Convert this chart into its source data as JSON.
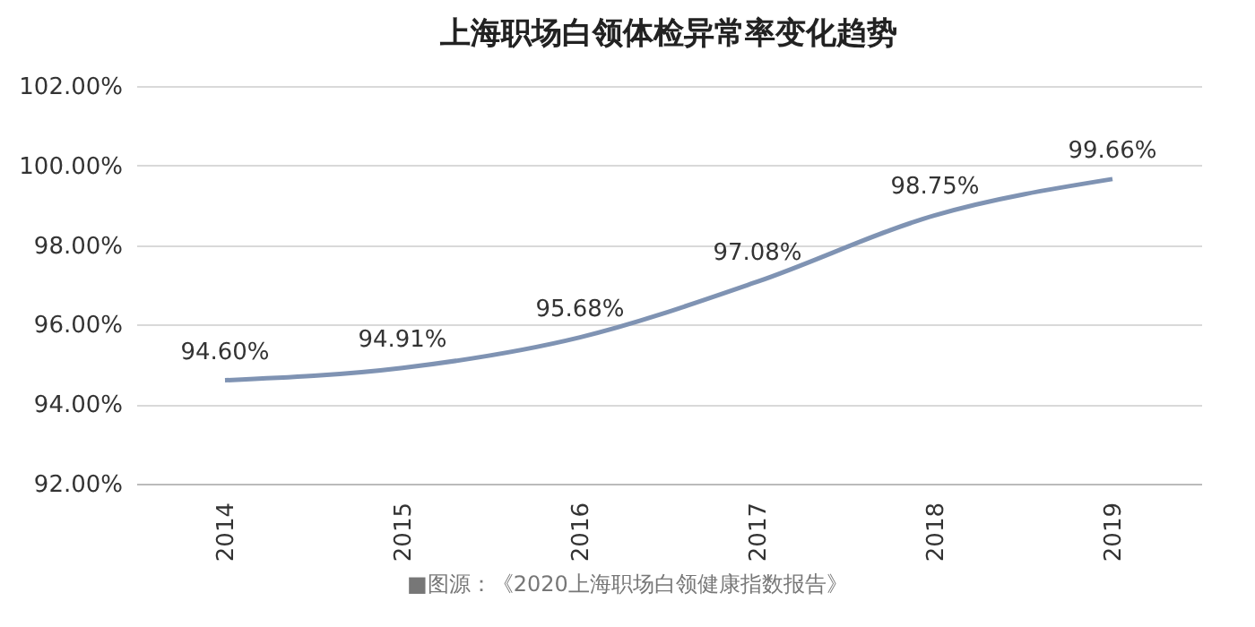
{
  "chart_data": {
    "type": "line",
    "title": "上海职场白领体检异常率变化趋势",
    "categories": [
      "2014",
      "2015",
      "2016",
      "2017",
      "2018",
      "2019"
    ],
    "series": [
      {
        "color": "#7f93b3",
        "values": [
          94.6,
          94.91,
          95.68,
          97.08,
          98.75,
          99.66
        ],
        "value_labels": [
          "94.60%",
          "94.91%",
          "95.68%",
          "97.08%",
          "98.75%",
          "99.66%"
        ]
      }
    ],
    "ylim": [
      92,
      102
    ],
    "yticks": [
      {
        "value": 92,
        "label": "92.00%"
      },
      {
        "value": 94,
        "label": "94.00%"
      },
      {
        "value": 96,
        "label": "96.00%"
      },
      {
        "value": 98,
        "label": "98.00%"
      },
      {
        "value": 100,
        "label": "100.00%"
      },
      {
        "value": 102,
        "label": "102.00%"
      }
    ],
    "grid": "y",
    "marker": "none",
    "line_style": "solid",
    "annotations": [
      "■图源：《2020上海职场白领健康指数报告》"
    ]
  }
}
